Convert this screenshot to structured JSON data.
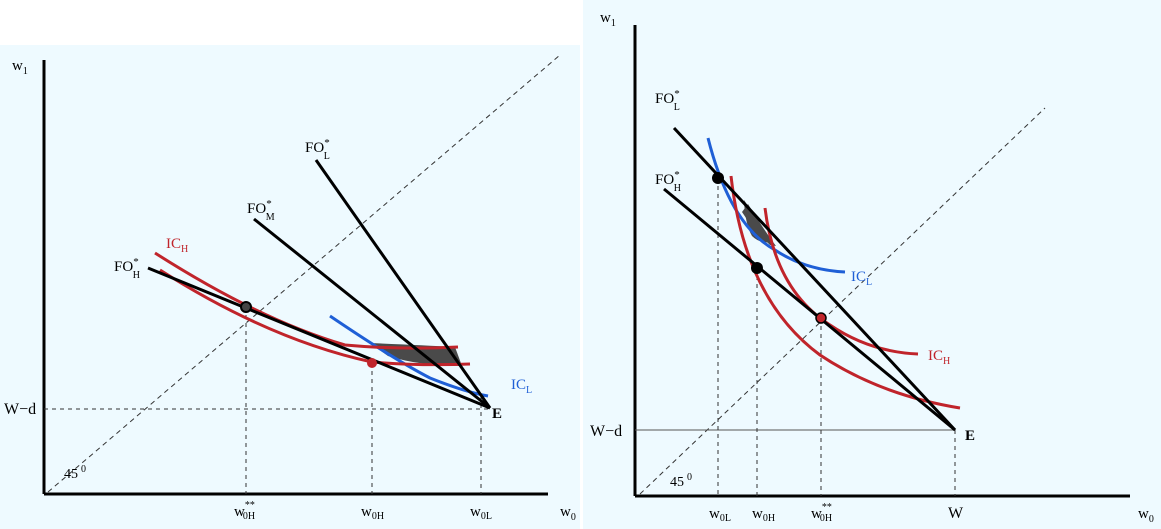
{
  "left": {
    "y_axis_main": "w",
    "y_axis_sub": "1",
    "x_axis_main": "w",
    "x_axis_sub": "0",
    "wd_label": "W−d",
    "e_label": "E",
    "angle_label": "45",
    "angle_degree": "0",
    "fo_l_main": "FO",
    "fo_l_sup": "*",
    "fo_l_sub": "L",
    "fo_m_main": "FO",
    "fo_m_sup": "*",
    "fo_m_sub": "M",
    "fo_h_main": "FO",
    "fo_h_sup": "*",
    "fo_h_sub": "H",
    "ic_h_main": "IC",
    "ic_h_sub": "H",
    "ic_l_main": "IC",
    "ic_l_sub": "L",
    "tick1_main": "w",
    "tick1_sup": "**",
    "tick1_sub": "0H",
    "tick2_main": "w",
    "tick2_sub": "0H",
    "tick3_main": "w",
    "tick3_sub": "0L",
    "colors": {
      "red": "#c0242b",
      "blue": "#1f5fd6",
      "shade": "#4a4a4a",
      "background": "#eefaff"
    }
  },
  "right": {
    "y_axis_main": "w",
    "y_axis_sub": "1",
    "x_axis_main": "w",
    "x_axis_sub": "0",
    "wd_label": "W−d",
    "e_label": "E",
    "angle_label": "45",
    "angle_degree": "0",
    "fo_l_main": "FO",
    "fo_l_sup": "*",
    "fo_l_sub": "L",
    "fo_h_main": "FO",
    "fo_h_sup": "*",
    "fo_h_sub": "H",
    "ic_l_main": "IC",
    "ic_l_sub": "L",
    "ic_h_main": "IC",
    "ic_h_sub": "H",
    "tick1_main": "w",
    "tick1_sub": "0L",
    "tick2_main": "w",
    "tick2_sub": "0H",
    "tick3_main": "w",
    "tick3_sup": "**",
    "tick3_sub": "0H",
    "tick4": "W"
  }
}
